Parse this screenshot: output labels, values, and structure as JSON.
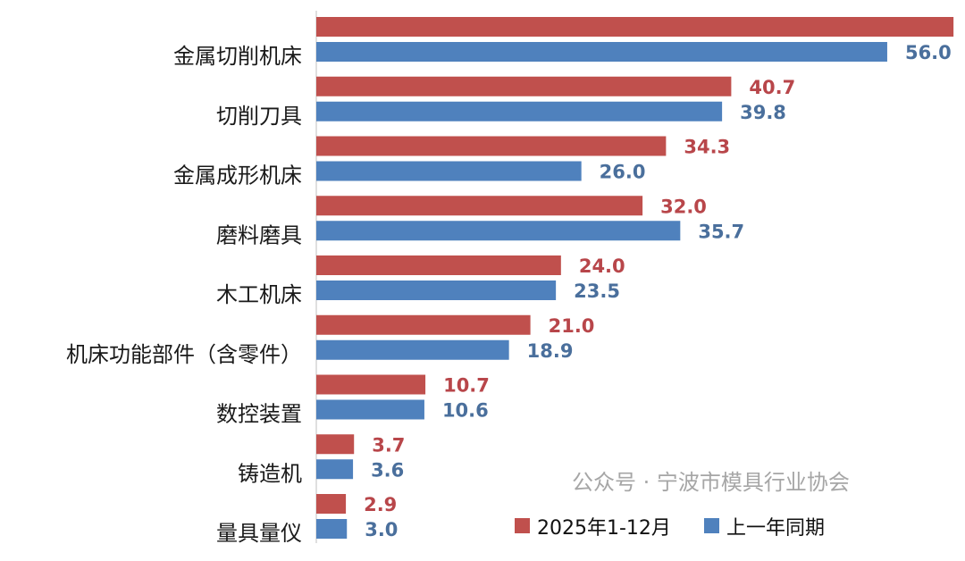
{
  "chart_data": {
    "type": "bar",
    "orientation": "horizontal",
    "categories": [
      "金属切削机床",
      "切削刀具",
      "金属成形机床",
      "磨料磨具",
      "木工机床",
      "机床功能部件（含零件）",
      "数控装置",
      "铸造机",
      "量具量仪"
    ],
    "series": [
      {
        "name": "2025年1-12月",
        "color": "#c0504d",
        "values": [
          62.5,
          40.7,
          34.3,
          32.0,
          24.0,
          21.0,
          10.7,
          3.7,
          2.9
        ],
        "labels": [
          "",
          "40.7",
          "34.3",
          "32.0",
          "24.0",
          "21.0",
          "10.7",
          "3.7",
          "2.9"
        ]
      },
      {
        "name": "上一年同期",
        "color": "#4f81bd",
        "values": [
          56.0,
          39.8,
          26.0,
          35.7,
          23.5,
          18.9,
          10.6,
          3.6,
          3.0
        ],
        "labels": [
          "56.0",
          "39.8",
          "26.0",
          "35.7",
          "23.5",
          "18.9",
          "10.6",
          "3.6",
          "3.0"
        ]
      }
    ],
    "xlim": [
      0,
      63
    ],
    "grid": false,
    "legend_position": "bottom-right"
  },
  "watermark": "公众号 · 宁波市模具行业协会"
}
